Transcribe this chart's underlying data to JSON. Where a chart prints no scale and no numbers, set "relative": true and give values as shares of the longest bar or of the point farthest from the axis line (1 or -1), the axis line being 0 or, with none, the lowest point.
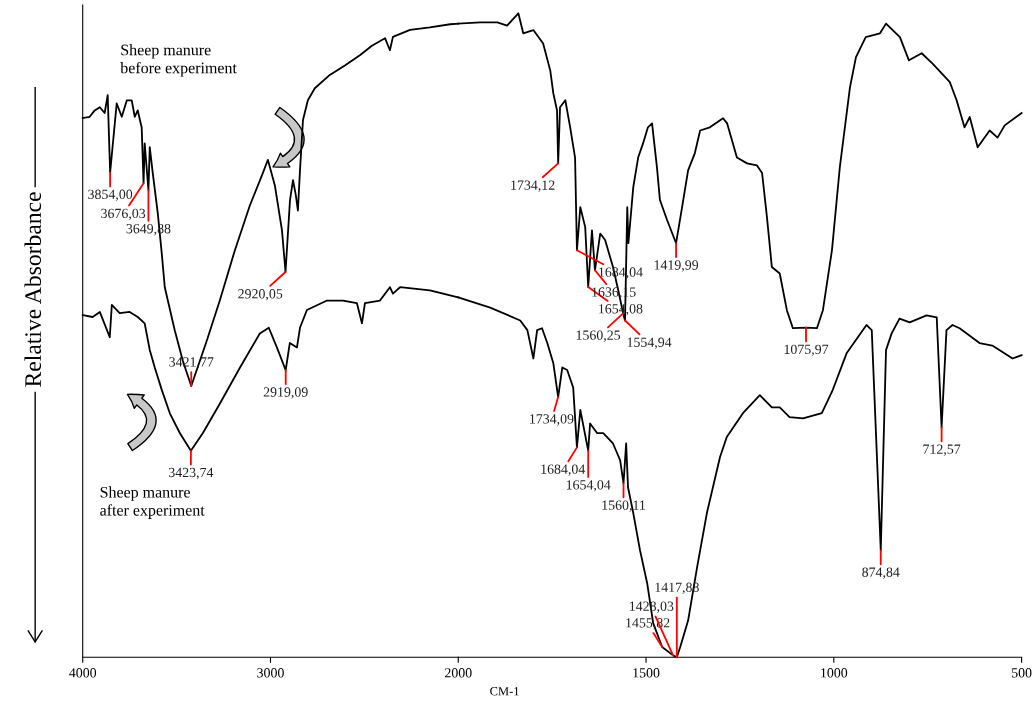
{
  "chart_data": [
    {
      "type": "line",
      "ylabel": "Relative Absorbance",
      "relative": true,
      "xlim": [
        4000,
        2000
      ],
      "xticks": [
        4000,
        3000,
        2000
      ],
      "series": [
        {
          "name": "Sheep manure\nbefore experiment",
          "color": "#000000",
          "x": [
            4000,
            3963,
            3936,
            3909,
            3883,
            3867,
            3854,
            3819,
            3792,
            3765,
            3739,
            3723,
            3707,
            3686,
            3676,
            3670,
            3650,
            3643,
            3627,
            3600,
            3579,
            3563,
            3510,
            3467,
            3422,
            3339,
            3270,
            3190,
            3110,
            3046,
            3014,
            2977,
            2939,
            2920,
            2896,
            2880,
            2865,
            2854,
            2843,
            2827,
            2801,
            2764,
            2684,
            2604,
            2524,
            2460,
            2390,
            2364,
            2348,
            2257,
            2151,
            2043,
            2000
          ],
          "values": [
            0.851,
            0.853,
            0.863,
            0.868,
            0.859,
            0.887,
            0.765,
            0.874,
            0.853,
            0.879,
            0.879,
            0.853,
            0.863,
            0.836,
            0.748,
            0.811,
            0.737,
            0.805,
            0.764,
            0.7,
            0.637,
            0.584,
            0.516,
            0.468,
            0.428,
            0.5,
            0.563,
            0.642,
            0.713,
            0.76,
            0.785,
            0.745,
            0.674,
            0.608,
            0.722,
            0.753,
            0.729,
            0.705,
            0.768,
            0.848,
            0.879,
            0.898,
            0.919,
            0.934,
            0.95,
            0.965,
            0.977,
            0.958,
            0.979,
            0.99,
            0.994,
            0.999,
            1.0
          ]
        },
        {
          "name": "Sheep manure\nafter experiment",
          "color": "#000000",
          "x": [
            4000,
            3947,
            3909,
            3856,
            3845,
            3803,
            3750,
            3707,
            3670,
            3643,
            3616,
            3579,
            3536,
            3483,
            3424,
            3360,
            3270,
            3163,
            3057,
            3009,
            2966,
            2919,
            2897,
            2859,
            2843,
            2806,
            2699,
            2614,
            2540,
            2513,
            2497,
            2417,
            2364,
            2348,
            2310,
            2151,
            2000
          ],
          "values": [
            0.54,
            0.537,
            0.545,
            0.505,
            0.556,
            0.543,
            0.545,
            0.537,
            0.527,
            0.485,
            0.457,
            0.422,
            0.385,
            0.354,
            0.326,
            0.354,
            0.4,
            0.457,
            0.511,
            0.52,
            0.489,
            0.453,
            0.496,
            0.489,
            0.52,
            0.548,
            0.563,
            0.563,
            0.559,
            0.527,
            0.559,
            0.563,
            0.584,
            0.574,
            0.584,
            0.579,
            0.568
          ]
        }
      ],
      "annotations": [
        {
          "text": "3854,00",
          "x": 3854,
          "y": 0.765
        },
        {
          "text": "3676,03",
          "x": 3676,
          "y": 0.748
        },
        {
          "text": "3649,88",
          "x": 3650,
          "y": 0.737
        },
        {
          "text": "2920,05",
          "x": 2920,
          "y": 0.608
        },
        {
          "text": "3421,77",
          "x": 3422,
          "y": 0.428
        },
        {
          "text": "3423,74",
          "x": 3424,
          "y": 0.326
        },
        {
          "text": "2919,09",
          "x": 2919,
          "y": 0.453
        }
      ]
    },
    {
      "type": "line",
      "xlabel": "CM-1",
      "relative": true,
      "xlim": [
        2000,
        500
      ],
      "xticks": [
        1500,
        1000,
        500
      ],
      "series": [
        {
          "color": "#000000",
          "x": [
            2000,
            1941,
            1896,
            1870,
            1840,
            1827,
            1800,
            1774,
            1755,
            1747,
            1737,
            1734,
            1729,
            1715,
            1702,
            1689,
            1684,
            1675,
            1662,
            1654,
            1644,
            1636,
            1622,
            1609,
            1588,
            1574,
            1561,
            1556,
            1550,
            1547,
            1534,
            1521,
            1508,
            1495,
            1484,
            1471,
            1463,
            1444,
            1420,
            1404,
            1388,
            1370,
            1356,
            1330,
            1295,
            1284,
            1258,
            1231,
            1205,
            1191,
            1178,
            1165,
            1144,
            1125,
            1109,
            1074,
            1045,
            1029,
            1005,
            984,
            957,
            941,
            915,
            877,
            861,
            824,
            800,
            766,
            737,
            691,
            673,
            652,
            638,
            617,
            585,
            564,
            545,
            500
          ],
          "values": [
            0.984,
            0.986,
            0.986,
            0.981,
            1.0,
            0.969,
            0.974,
            0.953,
            0.911,
            0.876,
            0.849,
            0.767,
            0.854,
            0.865,
            0.823,
            0.776,
            0.632,
            0.699,
            0.668,
            0.575,
            0.663,
            0.601,
            0.658,
            0.648,
            0.606,
            0.57,
            0.534,
            0.523,
            0.699,
            0.643,
            0.73,
            0.776,
            0.798,
            0.823,
            0.829,
            0.761,
            0.71,
            0.679,
            0.643,
            0.699,
            0.756,
            0.783,
            0.818,
            0.823,
            0.837,
            0.829,
            0.776,
            0.767,
            0.764,
            0.752,
            0.683,
            0.606,
            0.596,
            0.539,
            0.511,
            0.512,
            0.511,
            0.539,
            0.632,
            0.761,
            0.885,
            0.932,
            0.963,
            0.969,
            0.984,
            0.963,
            0.927,
            0.938,
            0.922,
            0.893,
            0.865,
            0.823,
            0.839,
            0.792,
            0.818,
            0.807,
            0.826,
            0.845
          ]
        },
        {
          "color": "#000000",
          "x": [
            2000,
            1915,
            1835,
            1816,
            1800,
            1790,
            1777,
            1763,
            1747,
            1734,
            1723,
            1710,
            1694,
            1684,
            1675,
            1654,
            1649,
            1630,
            1614,
            1588,
            1569,
            1560,
            1553,
            1548,
            1534,
            1516,
            1497,
            1481,
            1457,
            1428,
            1418,
            1409,
            1388,
            1364,
            1338,
            1303,
            1285,
            1242,
            1197,
            1165,
            1144,
            1118,
            1082,
            1032,
            1003,
            966,
            913,
            899,
            875,
            861,
            846,
            825,
            798,
            753,
            726,
            713,
            700,
            684,
            665,
            612,
            578,
            524,
            500
          ],
          "values": [
            0.559,
            0.543,
            0.523,
            0.508,
            0.464,
            0.508,
            0.511,
            0.488,
            0.457,
            0.404,
            0.45,
            0.446,
            0.419,
            0.326,
            0.384,
            0.321,
            0.363,
            0.348,
            0.348,
            0.332,
            0.306,
            0.27,
            0.332,
            0.264,
            0.224,
            0.166,
            0.115,
            0.053,
            0.016,
            0.003,
            0.0,
            0.016,
            0.057,
            0.14,
            0.224,
            0.311,
            0.342,
            0.379,
            0.407,
            0.388,
            0.388,
            0.373,
            0.371,
            0.379,
            0.415,
            0.472,
            0.516,
            0.508,
            0.166,
            0.477,
            0.503,
            0.526,
            0.52,
            0.531,
            0.528,
            0.357,
            0.508,
            0.516,
            0.511,
            0.488,
            0.484,
            0.464,
            0.469
          ]
        }
      ],
      "annotations": [
        {
          "text": "1734,12",
          "x": 1734,
          "y": 0.767
        },
        {
          "text": "1684,04",
          "x": 1684,
          "y": 0.632
        },
        {
          "text": "1654,08",
          "x": 1654,
          "y": 0.575
        },
        {
          "text": "1636,15",
          "x": 1636,
          "y": 0.601
        },
        {
          "text": "1560,25",
          "x": 1561,
          "y": 0.534
        },
        {
          "text": "1554,94",
          "x": 1556,
          "y": 0.523
        },
        {
          "text": "1419,99",
          "x": 1420,
          "y": 0.643
        },
        {
          "text": "1075,97",
          "x": 1074,
          "y": 0.512
        },
        {
          "text": "1734,09",
          "x": 1734,
          "y": 0.404
        },
        {
          "text": "1684,04",
          "x": 1684,
          "y": 0.326
        },
        {
          "text": "1654,04",
          "x": 1654,
          "y": 0.321
        },
        {
          "text": "1560,11",
          "x": 1560,
          "y": 0.27
        },
        {
          "text": "1455,82",
          "x": 1457,
          "y": 0.016
        },
        {
          "text": "1428,03",
          "x": 1428,
          "y": 0.003
        },
        {
          "text": "1417,88",
          "x": 1418,
          "y": 0.0
        },
        {
          "text": "874,84",
          "x": 875,
          "y": 0.166
        },
        {
          "text": "712,57",
          "x": 713,
          "y": 0.357
        }
      ]
    }
  ]
}
